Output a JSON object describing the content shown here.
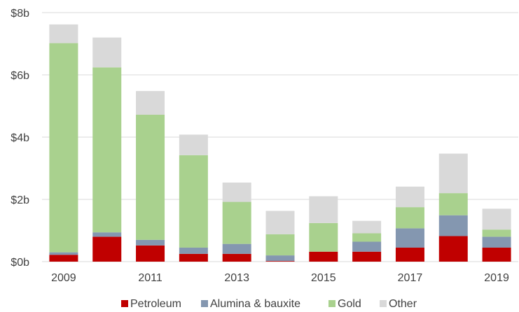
{
  "chart_data": {
    "type": "bar",
    "stacked": true,
    "title": "",
    "xlabel": "",
    "ylabel": "",
    "x": [
      2009,
      2010,
      2011,
      2012,
      2013,
      2014,
      2015,
      2016,
      2017,
      2018,
      2019
    ],
    "x_tick_labels": [
      "2009",
      "2011",
      "2013",
      "2015",
      "2017",
      "2019"
    ],
    "y_tick_labels": [
      "$0b",
      "$2b",
      "$4b",
      "$6b",
      "$8b"
    ],
    "ylim": [
      0,
      8
    ],
    "y_unit": "$b",
    "grid": "horizontal",
    "legend_position": "bottom",
    "series": [
      {
        "name": "Petroleum",
        "color": "#c00000",
        "values": [
          0.22,
          0.8,
          0.52,
          0.25,
          0.25,
          0.02,
          0.32,
          0.32,
          0.45,
          0.82,
          0.45
        ]
      },
      {
        "name": "Alumina & bauxite",
        "color": "#8497b0",
        "values": [
          0.08,
          0.14,
          0.18,
          0.2,
          0.32,
          0.18,
          0.0,
          0.32,
          0.62,
          0.67,
          0.35
        ]
      },
      {
        "name": "Gold",
        "color": "#a9d18e",
        "values": [
          6.72,
          5.3,
          4.02,
          2.97,
          1.35,
          0.68,
          0.92,
          0.27,
          0.68,
          0.71,
          0.23
        ]
      },
      {
        "name": "Other",
        "color": "#d9d9d9",
        "values": [
          0.6,
          0.96,
          0.76,
          0.66,
          0.62,
          0.75,
          0.86,
          0.4,
          0.66,
          1.27,
          0.67
        ]
      }
    ]
  }
}
